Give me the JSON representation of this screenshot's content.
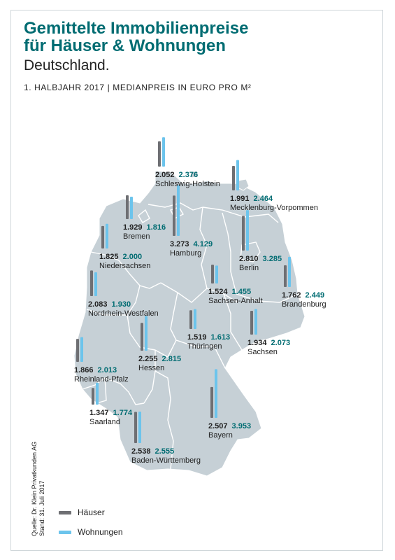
{
  "header": {
    "title_line1": "Gemittelte Immobilienpreise",
    "title_line2": "für Häuser & Wohnungen",
    "subtitle": "Deutschland.",
    "meta": "1. HALBJAHR 2017 | MEDIANPREIS IN EURO PRO M²"
  },
  "colors": {
    "accent": "#006c72",
    "haeuser": "#6e6f73",
    "wohnungen": "#6cc4ec",
    "map_fill": "#c6d0d6",
    "map_stroke": "#ffffff"
  },
  "chart_data": {
    "type": "bar",
    "title": "Gemittelte Immobilienpreise für Häuser & Wohnungen",
    "unit": "Medianpreis in Euro pro m²",
    "series": [
      {
        "name": "Häuser",
        "color": "#6e6f73"
      },
      {
        "name": "Wohnungen",
        "color": "#6cc4ec"
      }
    ],
    "regions": [
      {
        "name": "Schleswig-Holstein",
        "haeuser": "2.052",
        "wohnungen": "2.376"
      },
      {
        "name": "Mecklenburg-Vorpommen",
        "haeuser": "1.991",
        "wohnungen": "2.464"
      },
      {
        "name": "Bremen",
        "haeuser": "1.929",
        "wohnungen": "1.816"
      },
      {
        "name": "Hamburg",
        "haeuser": "3.273",
        "wohnungen": "4.129"
      },
      {
        "name": "Niedersachsen",
        "haeuser": "1.825",
        "wohnungen": "2.000"
      },
      {
        "name": "Berlin",
        "haeuser": "2.810",
        "wohnungen": "3.285"
      },
      {
        "name": "Sachsen-Anhalt",
        "haeuser": "1.524",
        "wohnungen": "1.455"
      },
      {
        "name": "Brandenburg",
        "haeuser": "1.762",
        "wohnungen": "2.449"
      },
      {
        "name": "Nordrhein-Westfalen",
        "haeuser": "2.083",
        "wohnungen": "1.930"
      },
      {
        "name": "Thüringen",
        "haeuser": "1.519",
        "wohnungen": "1.613"
      },
      {
        "name": "Sachsen",
        "haeuser": "1.934",
        "wohnungen": "2.073"
      },
      {
        "name": "Hessen",
        "haeuser": "2.255",
        "wohnungen": "2.815"
      },
      {
        "name": "Rheinland-Pfalz",
        "haeuser": "1.866",
        "wohnungen": "2.013"
      },
      {
        "name": "Saarland",
        "haeuser": "1.347",
        "wohnungen": "1.774"
      },
      {
        "name": "Bayern",
        "haeuser": "2.507",
        "wohnungen": "3.953"
      },
      {
        "name": "Baden-Württemberg",
        "haeuser": "2.538",
        "wohnungen": "2.555"
      }
    ]
  },
  "legend": {
    "haeuser": "Häuser",
    "wohnungen": "Wohnungen"
  },
  "source": {
    "line1": "Quelle: Dr. Klein Privatkunden AG",
    "line2": "Stand: 31. Juli 2017"
  }
}
